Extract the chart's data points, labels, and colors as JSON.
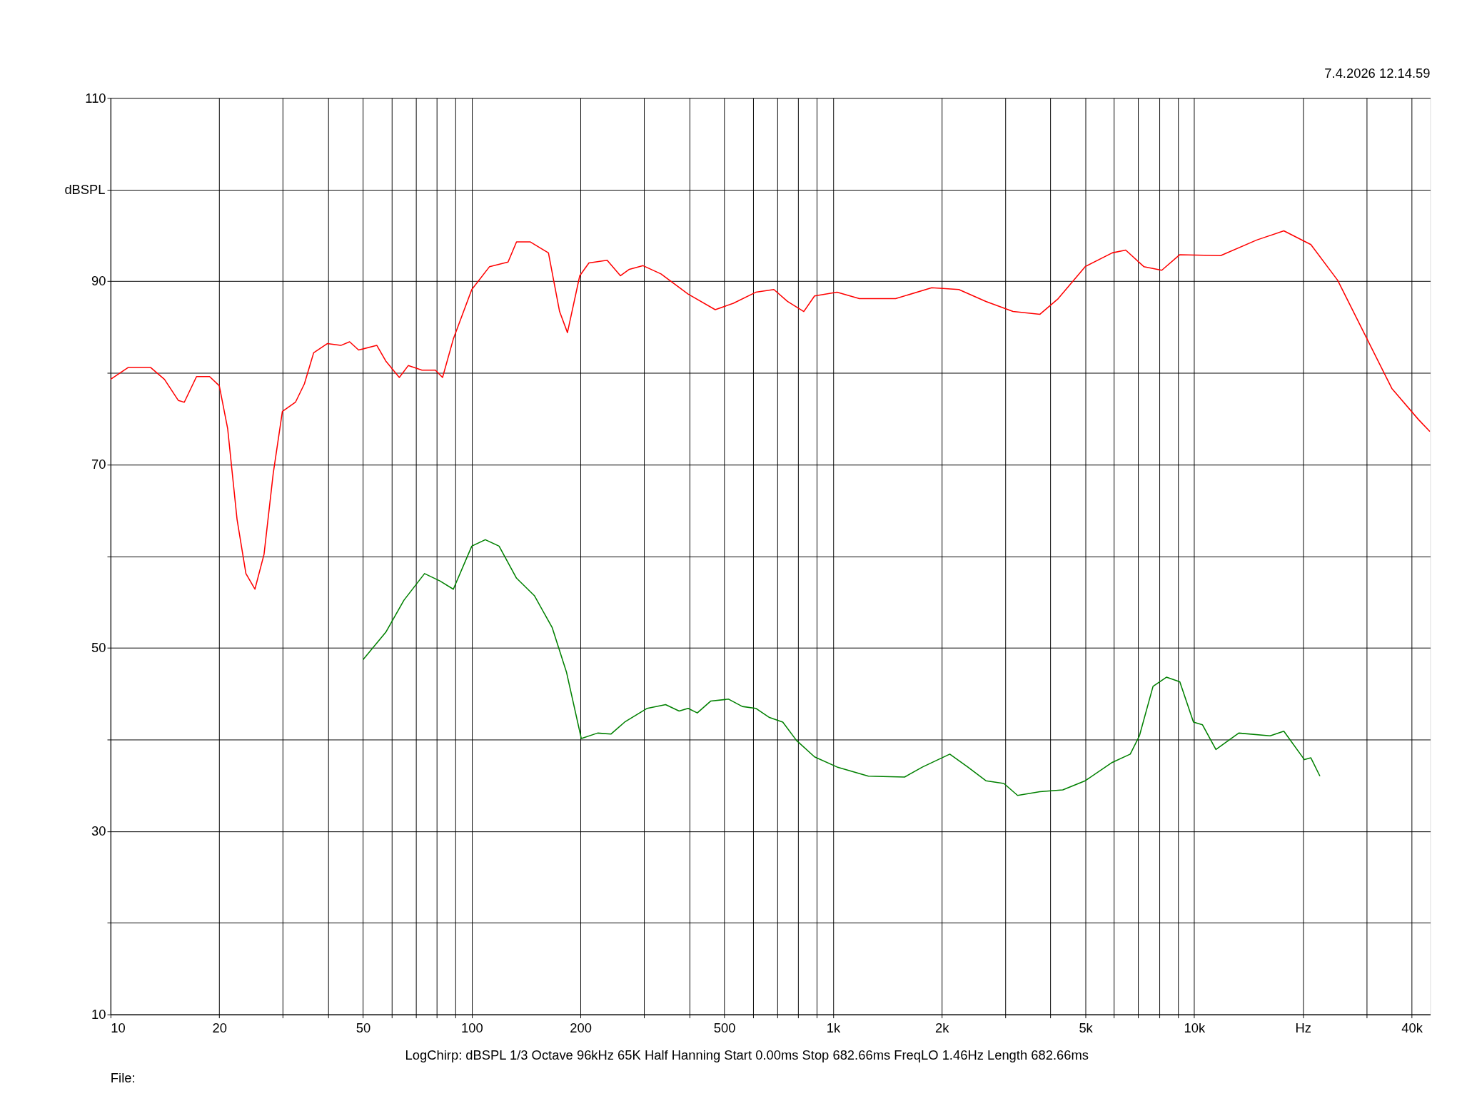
{
  "chart_data": {
    "type": "line",
    "ylabel": "dBSPL",
    "annotations": [
      "7.4.2026 12.14.59",
      "LogChirp:  dBSPL   1/3 Octave   96kHz   65K   Half Hanning   Start 0.00ms    Stop 682.66ms    FreqLO 1.46Hz    Length 682.66ms",
      "File:"
    ],
    "log": "x",
    "grid": true,
    "legend": false,
    "xlim": [
      10,
      45000
    ],
    "ylim": [
      10,
      110
    ],
    "xticks": [
      10,
      20,
      {
        "value": 30,
        "label": null
      },
      {
        "value": 40,
        "label": null
      },
      50,
      {
        "value": 60,
        "label": null
      },
      {
        "value": 70,
        "label": null
      },
      {
        "value": 80,
        "label": null
      },
      {
        "value": 90,
        "label": null
      },
      100,
      200,
      {
        "value": 300,
        "label": null
      },
      {
        "value": 400,
        "label": null
      },
      500,
      {
        "value": 600,
        "label": null
      },
      {
        "value": 700,
        "label": null
      },
      {
        "value": 800,
        "label": null
      },
      {
        "value": 900,
        "label": null
      },
      {
        "value": 1000,
        "label": "1k"
      },
      {
        "value": 2000,
        "label": "2k"
      },
      {
        "value": 3000,
        "label": null
      },
      {
        "value": 4000,
        "label": null
      },
      {
        "value": 5000,
        "label": "5k"
      },
      {
        "value": 6000,
        "label": null
      },
      {
        "value": 7000,
        "label": null
      },
      {
        "value": 8000,
        "label": null
      },
      {
        "value": 9000,
        "label": null
      },
      {
        "value": 10000,
        "label": "10k"
      },
      {
        "value": 20000,
        "label": "Hz"
      },
      {
        "value": 30000,
        "label": null
      },
      {
        "value": 40000,
        "label": "40k"
      }
    ],
    "yticks": [
      10,
      {
        "value": 20,
        "label": null
      },
      30,
      {
        "value": 40,
        "label": null
      },
      50,
      {
        "value": 60,
        "label": null
      },
      70,
      {
        "value": 80,
        "label": null
      },
      90,
      {
        "value": 100,
        "label": null
      },
      110
    ],
    "series": [
      {
        "color": "#ff0000",
        "x": [
          10,
          11.2,
          12.9,
          14.1,
          15.4,
          16.0,
          17.3,
          18.8,
          20.0,
          21.1,
          22.4,
          23.7,
          25.1,
          26.6,
          28.2,
          29.9,
          32.5,
          34.4,
          36.5,
          39.8,
          43.4,
          45.9,
          48.6,
          54.6,
          57.8,
          63.0,
          66.7,
          72.8,
          79.3,
          83.0,
          88.9,
          100,
          112,
          126,
          133,
          145,
          163,
          175,
          184,
          199,
          211,
          237,
          258,
          273,
          298,
          334,
          397,
          472,
          530,
          611,
          686,
          748,
          830,
          889,
          1026,
          1183,
          1490,
          1876,
          2230,
          2650,
          3150,
          3740,
          4200,
          4990,
          5930,
          6460,
          7250,
          8130,
          9120,
          11830,
          14890,
          17700,
          21030,
          24950,
          29650,
          35240,
          41780,
          44900
        ],
        "values": [
          79.3,
          80.6,
          80.6,
          79.3,
          77.0,
          76.8,
          79.6,
          79.6,
          78.6,
          73.9,
          64.0,
          58.1,
          56.4,
          60.2,
          69.0,
          75.8,
          76.8,
          78.8,
          82.2,
          83.2,
          83.0,
          83.4,
          82.5,
          83.0,
          81.3,
          79.5,
          80.8,
          80.3,
          80.3,
          79.5,
          83.7,
          89.1,
          91.6,
          92.1,
          94.3,
          94.3,
          93.1,
          86.7,
          84.4,
          90.6,
          92.0,
          92.3,
          90.6,
          91.3,
          91.7,
          90.8,
          88.6,
          86.9,
          87.6,
          88.8,
          89.1,
          87.8,
          86.7,
          88.4,
          88.8,
          88.1,
          88.1,
          89.3,
          89.1,
          87.8,
          86.7,
          86.4,
          88.1,
          91.6,
          93.1,
          93.4,
          91.6,
          91.2,
          92.9,
          92.8,
          94.5,
          95.5,
          94.0,
          90.1,
          84.2,
          78.3,
          74.9,
          73.6
        ]
      },
      {
        "color": "#008000",
        "x": [
          50.0,
          57.8,
          64.9,
          74.0,
          81.6,
          88.9,
          100,
          109,
          119,
          133,
          149,
          167,
          183,
          201,
          223,
          243,
          265,
          306,
          344,
          375,
          397,
          421,
          459,
          514,
          561,
          611,
          667,
          726,
          792,
          889,
          1026,
          1253,
          1578,
          1770,
          2105,
          2360,
          2650,
          2972,
          3243,
          3740,
          4325,
          4990,
          5930,
          6650,
          7050,
          7690,
          8375,
          9120,
          9950,
          10540,
          11480,
          13280,
          16220,
          17700,
          20180,
          21030,
          22280
        ],
        "values": [
          48.7,
          51.7,
          55.2,
          58.1,
          57.3,
          56.4,
          61.1,
          61.8,
          61.1,
          57.6,
          55.7,
          52.2,
          47.3,
          40.1,
          40.7,
          40.6,
          41.9,
          43.4,
          43.8,
          43.1,
          43.4,
          42.9,
          44.2,
          44.4,
          43.6,
          43.4,
          42.4,
          41.9,
          39.9,
          38.1,
          37.0,
          36.0,
          35.9,
          37.0,
          38.4,
          37.0,
          35.5,
          35.2,
          33.9,
          34.3,
          34.5,
          35.5,
          37.5,
          38.4,
          40.4,
          45.8,
          46.8,
          46.3,
          41.9,
          41.6,
          38.9,
          40.7,
          40.4,
          40.9,
          37.8,
          38.0,
          36.0
        ]
      }
    ]
  }
}
